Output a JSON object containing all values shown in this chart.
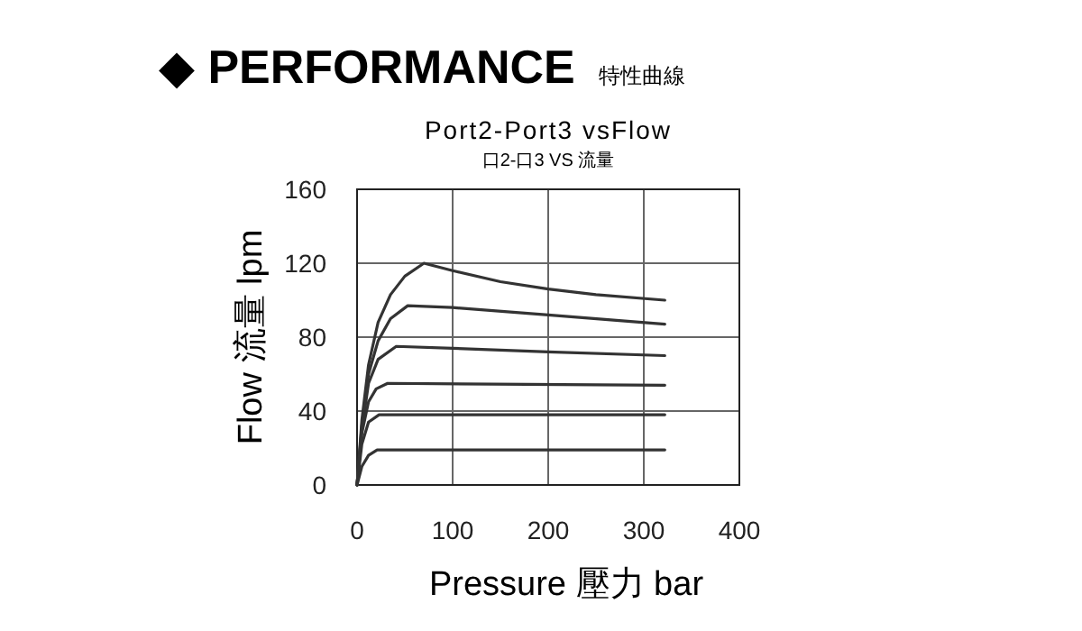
{
  "chart_data": {
    "type": "line",
    "title": "Port2-Port3 vsFlow",
    "subtitle": "口2-口3 VS 流量",
    "annotations": [
      "◆ PERFORMANCE",
      "特性曲線"
    ],
    "xlabel": "Pressure 壓力 bar",
    "ylabel": "Flow 流量 lpm",
    "xlim": [
      0,
      400
    ],
    "xticks": [
      0,
      100,
      200,
      300,
      400
    ],
    "ylim": [
      0,
      160
    ],
    "yticks": [
      0,
      40,
      80,
      120,
      160
    ],
    "grid": true,
    "series": [
      {
        "color": "#333333",
        "x": [
          0,
          5,
          12,
          22,
          35,
          50,
          70,
          100,
          150,
          200,
          250,
          322
        ],
        "values": [
          0,
          35,
          65,
          88,
          103,
          113,
          120,
          116,
          110,
          106,
          103,
          100
        ]
      },
      {
        "color": "#333333",
        "x": [
          0,
          5,
          12,
          22,
          35,
          53,
          100,
          200,
          322
        ],
        "values": [
          0,
          32,
          60,
          78,
          90,
          97,
          96,
          92,
          87
        ]
      },
      {
        "color": "#333333",
        "x": [
          0,
          5,
          12,
          22,
          41,
          100,
          200,
          322
        ],
        "values": [
          0,
          30,
          55,
          68,
          75,
          74,
          72,
          70
        ]
      },
      {
        "color": "#333333",
        "x": [
          0,
          5,
          12,
          20,
          32,
          322
        ],
        "values": [
          0,
          28,
          45,
          52,
          55,
          54
        ]
      },
      {
        "color": "#333333",
        "x": [
          0,
          5,
          12,
          23,
          322
        ],
        "values": [
          0,
          22,
          34,
          38,
          38
        ]
      },
      {
        "color": "#333333",
        "x": [
          0,
          5,
          12,
          21,
          322
        ],
        "values": [
          0,
          10,
          16,
          19,
          19
        ]
      }
    ]
  }
}
